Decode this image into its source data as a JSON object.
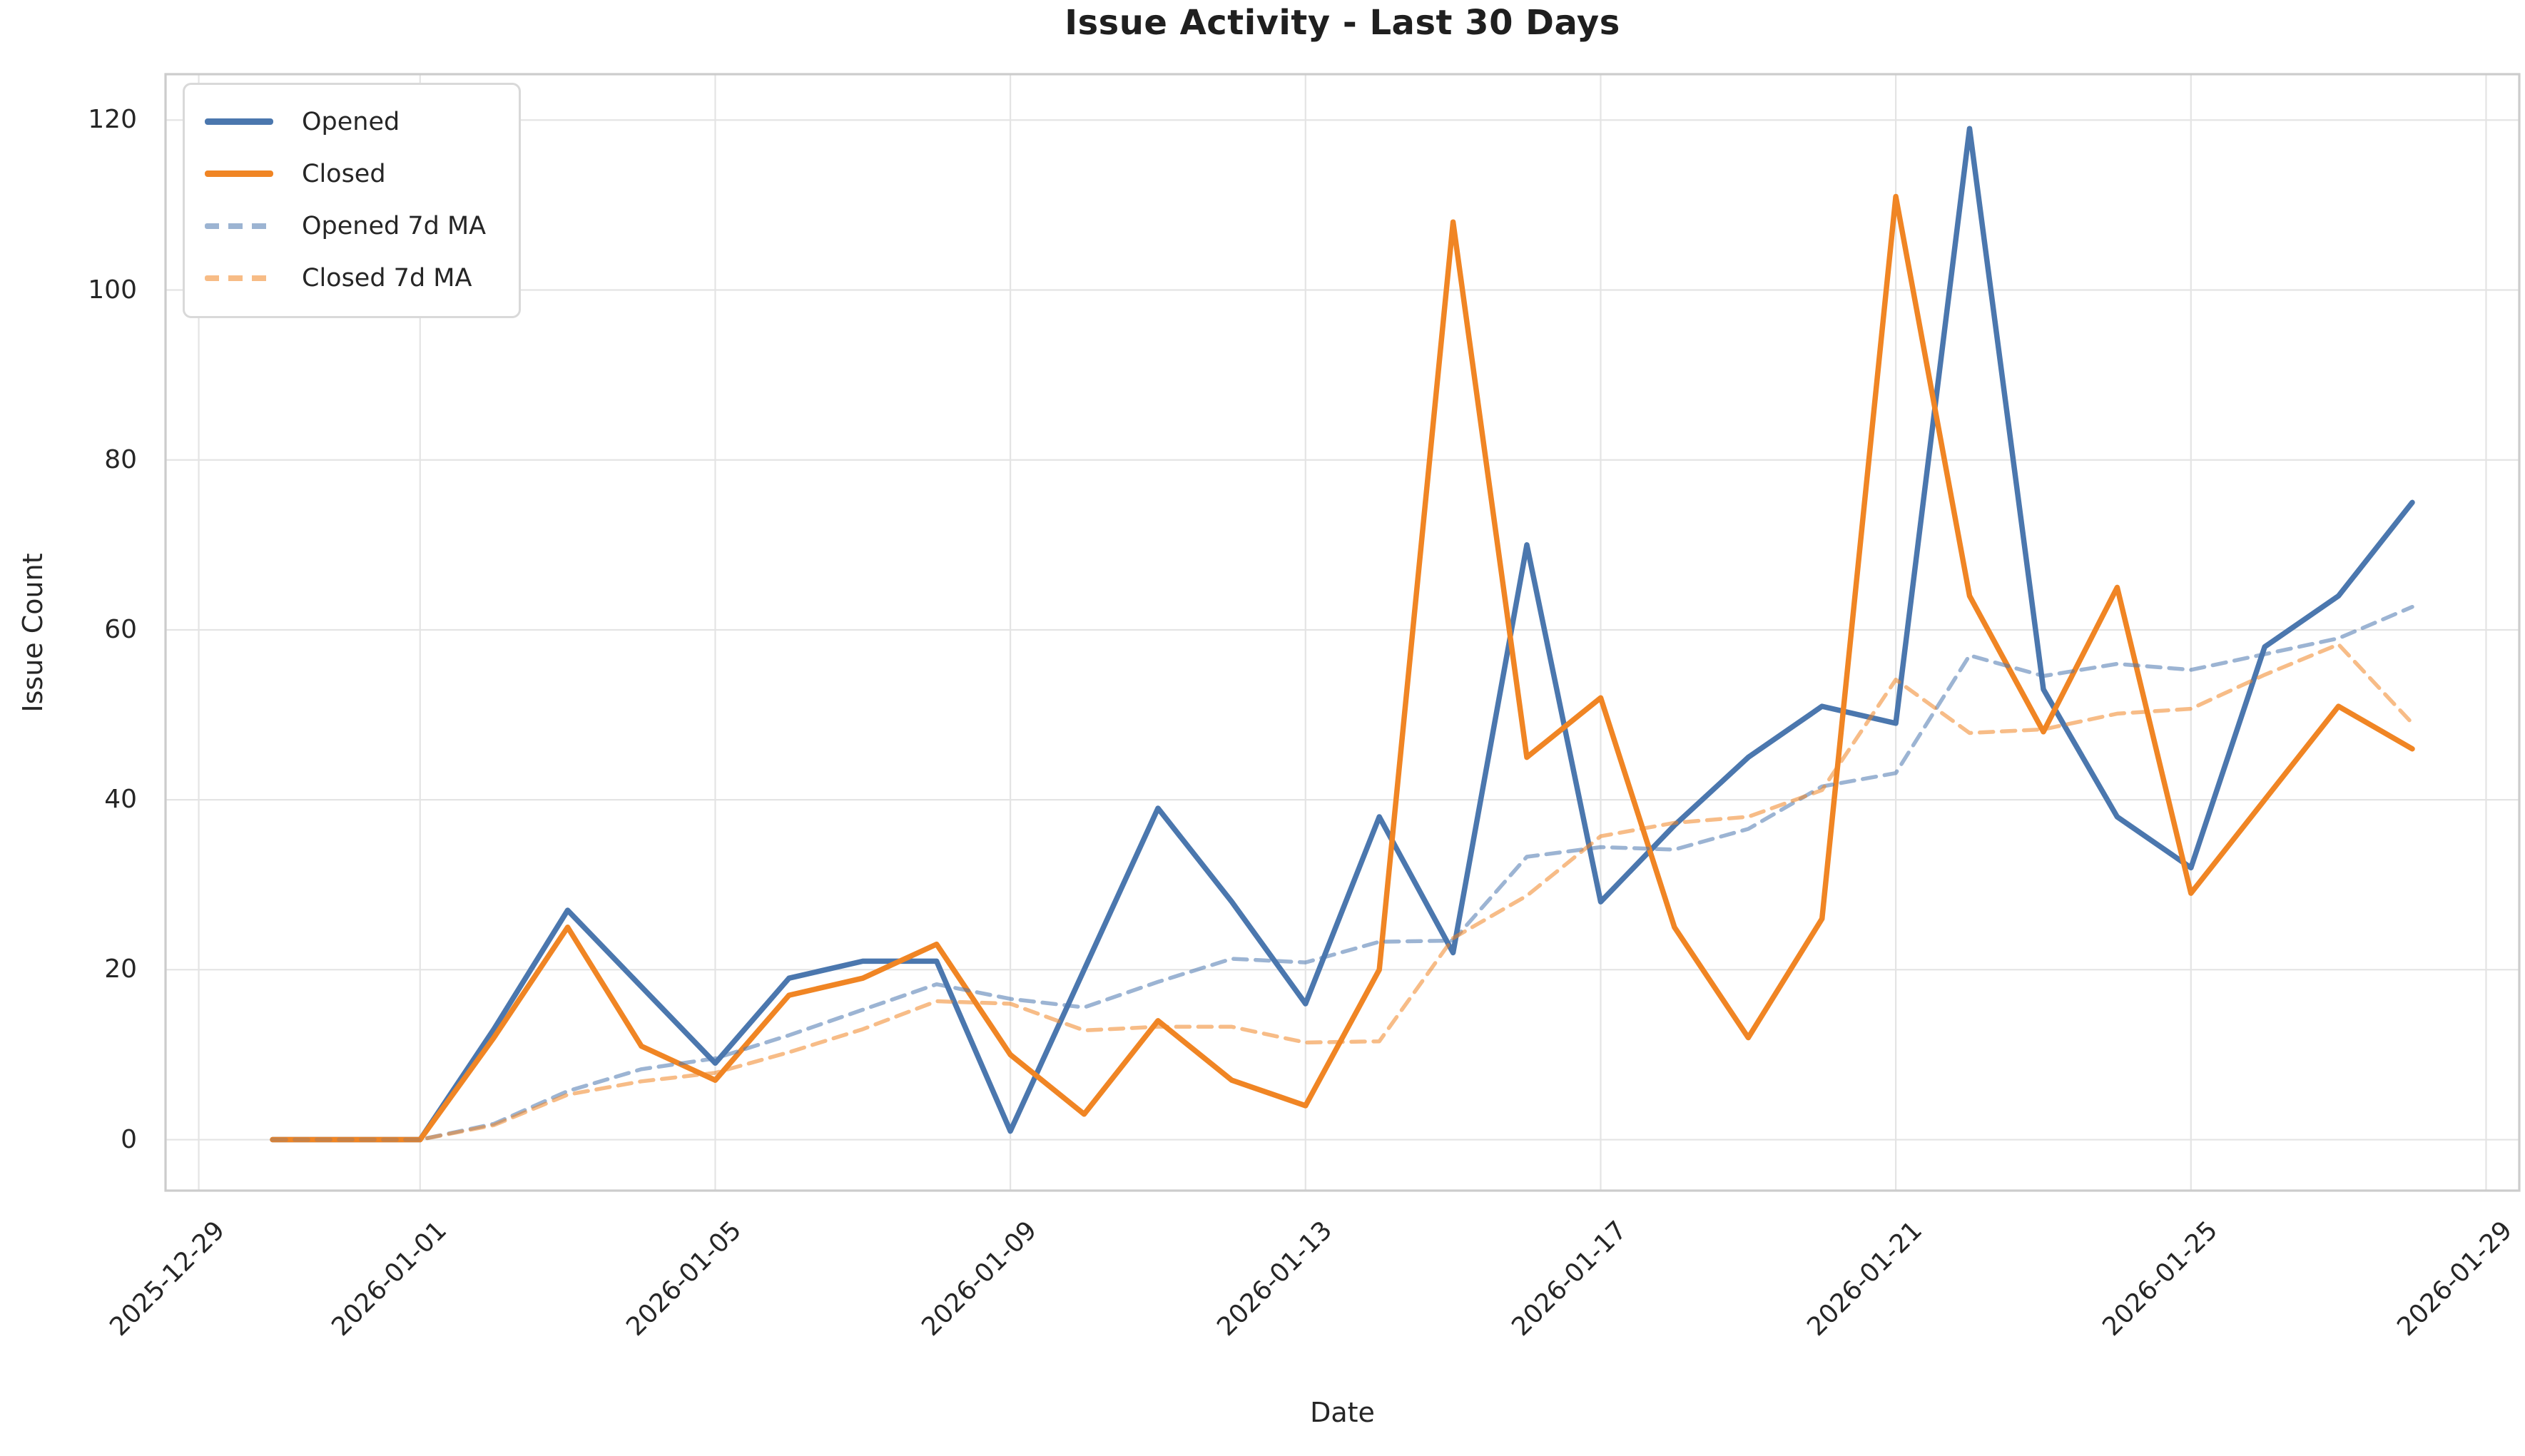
{
  "chart_data": {
    "type": "line",
    "title": "Issue Activity - Last 30 Days",
    "xlabel": "Date",
    "ylabel": "Issue Count",
    "grid": true,
    "legend_position": "upper left",
    "colors": {
      "opened": "#4b77ae",
      "closed": "#f08524",
      "grid": "#e4e4e4",
      "spine": "#cccccc",
      "text": "#262626",
      "title": "#1f1f1f",
      "background": "#ffffff"
    },
    "x_ticks": [
      {
        "label": "2025-12-29",
        "day": 0
      },
      {
        "label": "2026-01-01",
        "day": 3
      },
      {
        "label": "2026-01-05",
        "day": 7
      },
      {
        "label": "2026-01-09",
        "day": 11
      },
      {
        "label": "2026-01-13",
        "day": 15
      },
      {
        "label": "2026-01-17",
        "day": 19
      },
      {
        "label": "2026-01-21",
        "day": 23
      },
      {
        "label": "2026-01-25",
        "day": 27
      },
      {
        "label": "2026-01-29",
        "day": 31
      }
    ],
    "y_ticks": [
      0,
      20,
      40,
      60,
      80,
      100,
      120
    ],
    "xlim": [
      -0.45,
      31.45
    ],
    "ylim": [
      -6,
      125.4
    ],
    "first_day_offset": 1,
    "dates": [
      "2025-12-30",
      "2025-12-31",
      "2026-01-01",
      "2026-01-02",
      "2026-01-03",
      "2026-01-04",
      "2026-01-05",
      "2026-01-06",
      "2026-01-07",
      "2026-01-08",
      "2026-01-09",
      "2026-01-10",
      "2026-01-11",
      "2026-01-12",
      "2026-01-13",
      "2026-01-14",
      "2026-01-15",
      "2026-01-16",
      "2026-01-17",
      "2026-01-18",
      "2026-01-19",
      "2026-01-20",
      "2026-01-21",
      "2026-01-22",
      "2026-01-23",
      "2026-01-24",
      "2026-01-25",
      "2026-01-26",
      "2026-01-27",
      "2026-01-28"
    ],
    "series": [
      {
        "name": "Opened",
        "style": "solid",
        "color": "#4b77ae",
        "values": [
          0,
          0,
          0,
          13,
          27,
          18,
          9,
          19,
          21,
          21,
          1,
          20,
          39,
          28,
          16,
          38,
          22,
          70,
          28,
          37,
          45,
          51,
          49,
          119,
          53,
          38,
          32,
          58,
          64,
          75
        ]
      },
      {
        "name": "Closed",
        "style": "solid",
        "color": "#f08524",
        "values": [
          0,
          0,
          0,
          12,
          25,
          11,
          7,
          17,
          19,
          23,
          10,
          3,
          14,
          7,
          4,
          20,
          108,
          45,
          52,
          25,
          12,
          26,
          111,
          64,
          48,
          65,
          29,
          40,
          51,
          46
        ]
      },
      {
        "name": "Opened 7d MA",
        "style": "dashed",
        "color": "#4b77ae",
        "values": [
          0,
          0,
          0,
          1.86,
          5.71,
          8.29,
          9.57,
          12.29,
          15.29,
          18.29,
          16.57,
          15.57,
          18.57,
          21.29,
          20.86,
          23.29,
          23.43,
          33.29,
          34.43,
          34.14,
          36.57,
          41.57,
          43.14,
          57,
          54.57,
          56,
          55.29,
          57.14,
          59,
          62.71
        ]
      },
      {
        "name": "Closed 7d MA",
        "style": "dashed",
        "color": "#f08524",
        "values": [
          0,
          0,
          0,
          1.71,
          5.29,
          6.86,
          7.86,
          10.29,
          13,
          16.29,
          16,
          12.86,
          13.29,
          13.29,
          11.43,
          11.57,
          23.71,
          28.71,
          35.71,
          37.29,
          38,
          41.14,
          54.14,
          47.86,
          48.29,
          50.14,
          50.71,
          54.71,
          58.29,
          49
        ]
      }
    ]
  }
}
